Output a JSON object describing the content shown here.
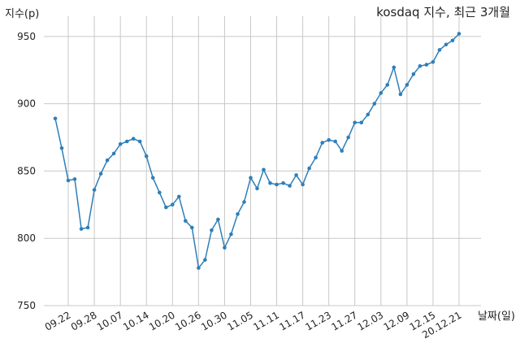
{
  "chart_data": {
    "type": "line",
    "title": "kosdaq 지수, 최근 3개월",
    "ylabel": "지수(p)",
    "xlabel": "날짜(일)",
    "ylim": [
      750,
      965
    ],
    "yticks": [
      750,
      800,
      850,
      900,
      950
    ],
    "xtick_labels": [
      "09.22",
      "09.28",
      "10.07",
      "10.14",
      "10.20",
      "10.26",
      "10.30",
      "11.05",
      "11.11",
      "11.17",
      "11.23",
      "11.27",
      "12.03",
      "12.09",
      "12.15",
      "20.12.21"
    ],
    "xtick_index": [
      2,
      6,
      10,
      14,
      18,
      22,
      26,
      30,
      34,
      38,
      42,
      46,
      50,
      54,
      58,
      62
    ],
    "grid": true,
    "line_color": "#2e7fb8",
    "series": [
      {
        "values": [
          889,
          867,
          843,
          844,
          807,
          808,
          836,
          848,
          858,
          863,
          870,
          872,
          874,
          872,
          861,
          845,
          834,
          823,
          825,
          831,
          813,
          808,
          778,
          784,
          806,
          814,
          793,
          803,
          818,
          827,
          845,
          837,
          851,
          841,
          840,
          841,
          839,
          847,
          840,
          852,
          860,
          871,
          873,
          872,
          865,
          875,
          886,
          886,
          892,
          900,
          908,
          914,
          927,
          907,
          914,
          922,
          928,
          929,
          931,
          940,
          944,
          947,
          952
        ]
      }
    ]
  }
}
